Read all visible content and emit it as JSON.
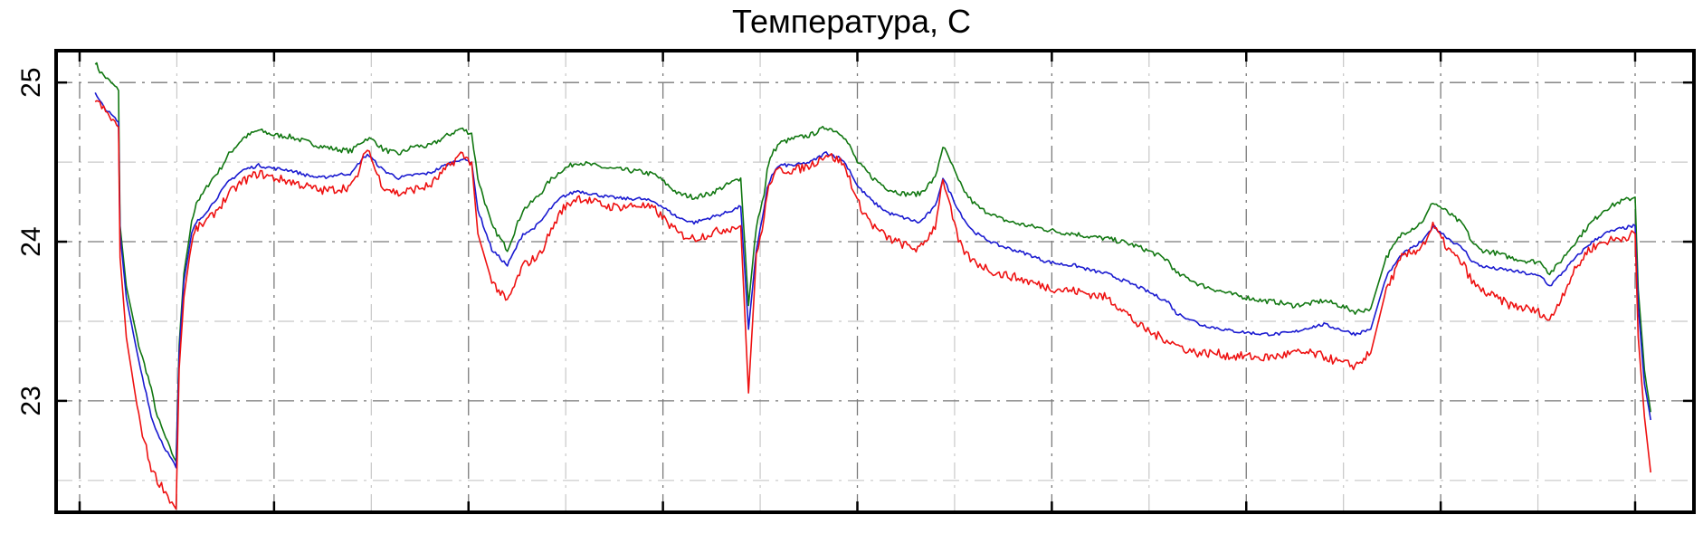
{
  "chart_data": {
    "type": "line",
    "title": "Температура, С",
    "xlabel": "",
    "ylabel": "",
    "xlim": [
      0,
      100
    ],
    "ylim": [
      22.3,
      25.2
    ],
    "yticks": [
      23,
      24,
      25
    ],
    "yminor": [
      22.5,
      23.5,
      24.5
    ],
    "xticks": [
      0,
      12.5,
      25,
      37.5,
      50,
      62.5,
      75,
      87.5,
      100
    ],
    "xminor": [
      6.25,
      18.75,
      31.25,
      43.75,
      56.25,
      68.75,
      81.25,
      93.75
    ],
    "grid": true,
    "legend": "none",
    "series": [
      {
        "color": "#117711",
        "x": [
          1,
          1.3,
          1.8,
          2.5,
          2.6,
          3.0,
          3.8,
          4.4,
          4.6,
          5.0,
          5.4,
          5.8,
          6.2,
          6.4,
          6.7,
          7.2,
          7.5,
          7.8,
          8.4,
          9.0,
          9.6,
          10.5,
          11.5,
          12.5,
          13.5,
          14.5,
          15.5,
          16.5,
          17.5,
          18.0,
          18.5,
          19.0,
          19.5,
          20.5,
          21.5,
          22.5,
          23.5,
          24.5,
          25.2,
          25.6,
          26.5,
          27.5,
          28.5,
          29.0,
          29.6,
          30.2,
          31.0,
          32.0,
          33.0,
          34.0,
          35.0,
          36.0,
          37.0,
          38.5,
          39.5,
          40.5,
          41.5,
          42.5,
          43.0,
          43.5,
          44.0,
          44.2,
          44.5,
          45.0,
          46.0,
          47.0,
          48.0,
          49.0,
          49.5,
          50.0,
          51.0,
          52.0,
          53.0,
          54.0,
          55.0,
          55.5,
          56.0,
          56.5,
          57.0,
          57.4,
          58.0,
          58.6,
          59.0,
          60.0,
          61.0,
          62.0,
          63.0,
          64.0,
          65.0,
          66.0,
          67.0,
          68.0,
          69.0,
          70.0,
          70.5,
          71.0,
          71.5,
          72.0,
          73.0,
          74.0,
          75.0,
          76.0,
          77.0,
          78.0,
          79.0,
          80.0,
          81.0,
          82.0,
          83.0,
          84.0,
          85.0,
          86.0,
          86.5,
          87.0,
          88.0,
          89.0,
          89.5,
          90.0,
          91.0,
          92.0,
          93.0,
          94.0,
          94.5,
          95.0,
          96.0,
          97.0,
          98.0,
          99.0,
          100.0,
          100.2,
          100.6,
          101.0
        ],
        "y": [
          25.13,
          25.07,
          25.02,
          24.95,
          24.1,
          23.72,
          23.35,
          23.15,
          23.07,
          22.9,
          22.8,
          22.7,
          22.62,
          23.35,
          23.8,
          24.12,
          24.25,
          24.28,
          24.38,
          24.45,
          24.55,
          24.65,
          24.7,
          24.67,
          24.66,
          24.63,
          24.6,
          24.58,
          24.57,
          24.62,
          24.65,
          24.63,
          24.58,
          24.55,
          24.6,
          24.6,
          24.66,
          24.71,
          24.68,
          24.4,
          24.1,
          23.95,
          24.2,
          24.24,
          24.3,
          24.38,
          24.45,
          24.5,
          24.48,
          24.46,
          24.45,
          24.44,
          24.42,
          24.3,
          24.28,
          24.3,
          24.35,
          24.4,
          23.6,
          24.1,
          24.3,
          24.45,
          24.55,
          24.62,
          24.65,
          24.67,
          24.72,
          24.68,
          24.6,
          24.5,
          24.4,
          24.33,
          24.3,
          24.3,
          24.4,
          24.6,
          24.5,
          24.38,
          24.3,
          24.25,
          24.2,
          24.18,
          24.15,
          24.12,
          24.1,
          24.08,
          24.06,
          24.05,
          24.03,
          24.02,
          24.0,
          23.97,
          23.93,
          23.88,
          23.8,
          23.78,
          23.76,
          23.73,
          23.7,
          23.67,
          23.65,
          23.63,
          23.62,
          23.6,
          23.61,
          23.63,
          23.6,
          23.56,
          23.58,
          23.9,
          24.05,
          24.1,
          24.15,
          24.25,
          24.18,
          24.1,
          24.0,
          23.95,
          23.93,
          23.9,
          23.88,
          23.87,
          23.8,
          23.85,
          23.98,
          24.1,
          24.2,
          24.25,
          24.28,
          23.7,
          23.2,
          22.93
        ]
      },
      {
        "color": "#1a1ad0",
        "x": [
          1,
          1.3,
          1.8,
          2.5,
          2.6,
          3.0,
          3.8,
          4.4,
          4.6,
          5.0,
          5.4,
          5.8,
          6.2,
          6.4,
          6.7,
          7.2,
          7.5,
          7.8,
          8.4,
          9.0,
          9.6,
          10.5,
          11.5,
          12.5,
          13.5,
          14.5,
          15.5,
          16.5,
          17.5,
          18.0,
          18.5,
          19.0,
          19.5,
          20.5,
          21.5,
          22.5,
          23.5,
          24.5,
          25.2,
          25.6,
          26.5,
          27.5,
          28.5,
          29.0,
          29.6,
          30.2,
          31.0,
          32.0,
          33.0,
          34.0,
          35.0,
          36.0,
          37.0,
          38.5,
          39.5,
          40.5,
          41.5,
          42.5,
          43.0,
          43.5,
          44.0,
          44.2,
          44.5,
          45.0,
          46.0,
          47.0,
          48.0,
          49.0,
          49.5,
          50.0,
          51.0,
          52.0,
          53.0,
          54.0,
          55.0,
          55.5,
          56.0,
          56.5,
          57.0,
          57.4,
          58.0,
          58.6,
          59.0,
          60.0,
          61.0,
          62.0,
          63.0,
          64.0,
          65.0,
          66.0,
          67.0,
          68.0,
          69.0,
          70.0,
          70.5,
          71.0,
          71.5,
          72.0,
          73.0,
          74.0,
          75.0,
          76.0,
          77.0,
          78.0,
          79.0,
          80.0,
          81.0,
          82.0,
          83.0,
          84.0,
          85.0,
          86.0,
          86.5,
          87.0,
          88.0,
          89.0,
          89.5,
          90.0,
          91.0,
          92.0,
          93.0,
          94.0,
          94.5,
          95.0,
          96.0,
          97.0,
          98.0,
          99.0,
          100.0,
          100.2,
          100.6,
          101.0
        ],
        "y": [
          24.93,
          24.88,
          24.82,
          24.75,
          24.05,
          23.65,
          23.25,
          23.0,
          22.9,
          22.8,
          22.72,
          22.65,
          22.58,
          23.3,
          23.75,
          24.05,
          24.12,
          24.15,
          24.22,
          24.3,
          24.38,
          24.45,
          24.48,
          24.46,
          24.45,
          24.42,
          24.4,
          24.42,
          24.43,
          24.5,
          24.55,
          24.5,
          24.45,
          24.4,
          24.42,
          24.43,
          24.48,
          24.52,
          24.5,
          24.2,
          23.95,
          23.85,
          24.05,
          24.07,
          24.12,
          24.2,
          24.28,
          24.32,
          24.3,
          24.28,
          24.27,
          24.27,
          24.25,
          24.15,
          24.12,
          24.15,
          24.18,
          24.22,
          23.45,
          23.95,
          24.2,
          24.33,
          24.42,
          24.48,
          24.48,
          24.5,
          24.56,
          24.52,
          24.45,
          24.35,
          24.25,
          24.18,
          24.15,
          24.12,
          24.22,
          24.4,
          24.3,
          24.2,
          24.12,
          24.07,
          24.03,
          24.0,
          23.98,
          23.95,
          23.92,
          23.88,
          23.86,
          23.85,
          23.82,
          23.8,
          23.76,
          23.72,
          23.67,
          23.62,
          23.55,
          23.53,
          23.51,
          23.48,
          23.46,
          23.44,
          23.43,
          23.42,
          23.42,
          23.43,
          23.46,
          23.48,
          23.45,
          23.42,
          23.45,
          23.78,
          23.92,
          23.98,
          24.02,
          24.1,
          24.02,
          23.95,
          23.88,
          23.85,
          23.83,
          23.82,
          23.8,
          23.78,
          23.72,
          23.77,
          23.88,
          23.98,
          24.05,
          24.08,
          24.1,
          23.6,
          23.1,
          22.88
        ]
      },
      {
        "color": "#ee1111",
        "x": [
          1,
          1.3,
          1.8,
          2.5,
          2.6,
          3.0,
          3.8,
          4.4,
          4.6,
          5.0,
          5.4,
          5.8,
          6.2,
          6.4,
          6.7,
          7.2,
          7.5,
          7.8,
          8.4,
          9.0,
          9.6,
          10.5,
          11.5,
          12.5,
          13.5,
          14.5,
          15.5,
          16.5,
          17.5,
          18.0,
          18.5,
          19.0,
          19.5,
          20.5,
          21.5,
          22.5,
          23.5,
          24.5,
          25.2,
          25.6,
          26.5,
          27.5,
          28.5,
          29.0,
          29.6,
          30.2,
          31.0,
          32.0,
          33.0,
          34.0,
          35.0,
          36.0,
          37.0,
          38.5,
          39.5,
          40.5,
          41.5,
          42.5,
          43.0,
          43.5,
          44.0,
          44.2,
          44.5,
          45.0,
          46.0,
          47.0,
          48.0,
          49.0,
          49.5,
          50.0,
          51.0,
          52.0,
          53.0,
          54.0,
          55.0,
          55.5,
          56.0,
          56.5,
          57.0,
          57.4,
          58.0,
          58.6,
          59.0,
          60.0,
          61.0,
          62.0,
          63.0,
          64.0,
          65.0,
          66.0,
          67.0,
          68.0,
          69.0,
          70.0,
          70.5,
          71.0,
          71.5,
          72.0,
          73.0,
          74.0,
          75.0,
          76.0,
          77.0,
          78.0,
          79.0,
          80.0,
          81.0,
          82.0,
          83.0,
          84.0,
          85.0,
          86.0,
          86.5,
          87.0,
          88.0,
          89.0,
          89.5,
          90.0,
          91.0,
          92.0,
          93.0,
          94.0,
          94.5,
          95.0,
          96.0,
          97.0,
          98.0,
          99.0,
          100.0,
          100.2,
          100.6,
          101.0
        ],
        "y": [
          24.9,
          24.86,
          24.8,
          24.72,
          23.9,
          23.4,
          22.9,
          22.65,
          22.58,
          22.5,
          22.45,
          22.38,
          22.32,
          23.2,
          23.65,
          24.0,
          24.08,
          24.1,
          24.15,
          24.22,
          24.3,
          24.38,
          24.43,
          24.4,
          24.38,
          24.35,
          24.32,
          24.33,
          24.35,
          24.45,
          24.6,
          24.45,
          24.35,
          24.3,
          24.33,
          24.35,
          24.45,
          24.55,
          24.5,
          24.05,
          23.75,
          23.62,
          23.85,
          23.88,
          23.92,
          24.05,
          24.2,
          24.28,
          24.25,
          24.22,
          24.22,
          24.23,
          24.2,
          24.05,
          24.02,
          24.05,
          24.08,
          24.1,
          23.05,
          23.9,
          24.15,
          24.3,
          24.4,
          24.45,
          24.45,
          24.48,
          24.55,
          24.5,
          24.4,
          24.25,
          24.1,
          24.02,
          23.98,
          23.95,
          24.1,
          24.4,
          24.2,
          24.0,
          23.92,
          23.88,
          23.85,
          23.82,
          23.8,
          23.78,
          23.75,
          23.72,
          23.7,
          23.69,
          23.67,
          23.65,
          23.58,
          23.48,
          23.42,
          23.38,
          23.35,
          23.33,
          23.31,
          23.3,
          23.3,
          23.28,
          23.28,
          23.27,
          23.28,
          23.3,
          23.3,
          23.28,
          23.24,
          23.22,
          23.3,
          23.7,
          23.9,
          23.95,
          24.0,
          24.1,
          23.95,
          23.85,
          23.75,
          23.7,
          23.65,
          23.6,
          23.58,
          23.55,
          23.5,
          23.6,
          23.8,
          23.95,
          24.0,
          24.02,
          24.05,
          23.4,
          22.9,
          22.55
        ]
      }
    ]
  }
}
